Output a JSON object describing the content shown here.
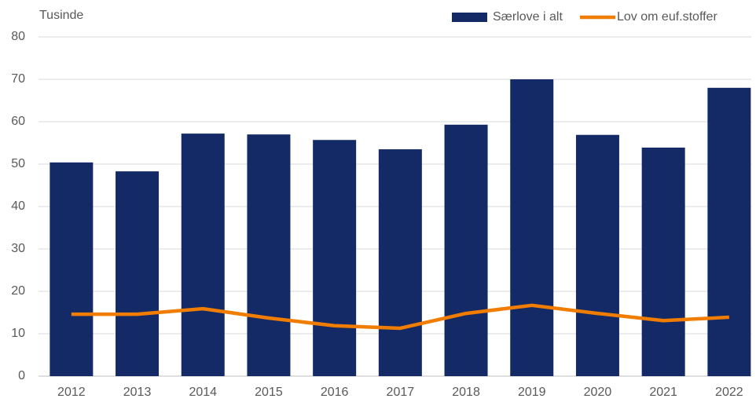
{
  "chart_data": {
    "type": "combo",
    "y_label": "Tusinde",
    "categories": [
      "2012",
      "2013",
      "2014",
      "2015",
      "2016",
      "2017",
      "2018",
      "2019",
      "2020",
      "2021",
      "2022"
    ],
    "series": [
      {
        "name": "Særlove i alt",
        "type": "bar",
        "color": "#132a66",
        "values": [
          50.4,
          48.3,
          57.2,
          57.0,
          55.7,
          53.5,
          59.3,
          70.0,
          56.9,
          53.9,
          68.0
        ]
      },
      {
        "name": "Lov om euf.stoffer",
        "type": "line",
        "color": "#f07d00",
        "values": [
          14.6,
          14.6,
          15.9,
          13.7,
          11.9,
          11.3,
          14.8,
          16.7,
          14.8,
          13.1,
          13.9
        ]
      }
    ],
    "ylim": [
      0,
      80
    ],
    "yticks": [
      0,
      10,
      20,
      30,
      40,
      50,
      60,
      70,
      80
    ],
    "grid": true,
    "legend": "top-right"
  }
}
